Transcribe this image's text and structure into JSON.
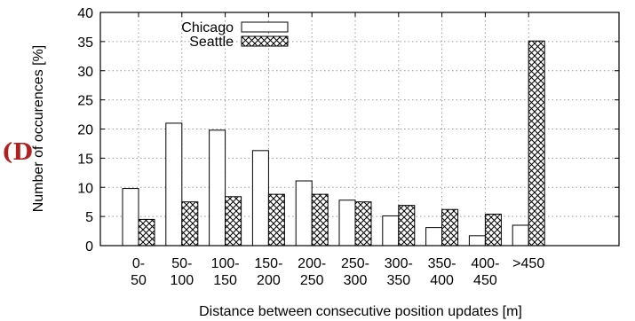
{
  "chart_data": {
    "type": "bar",
    "title": "",
    "xlabel": "Distance between consecutive position updates [m]",
    "ylabel": "Number of occurences [%]",
    "ylim": [
      0,
      40
    ],
    "yticks": [
      0,
      5,
      10,
      15,
      20,
      25,
      30,
      35,
      40
    ],
    "grid": true,
    "legend_position": "top-left",
    "categories": [
      [
        "0-",
        "50"
      ],
      [
        "50-",
        "100"
      ],
      [
        "100-",
        "150"
      ],
      [
        "150-",
        "200"
      ],
      [
        "200-",
        "250"
      ],
      [
        "250-",
        "300"
      ],
      [
        "300-",
        "350"
      ],
      [
        "350-",
        "400"
      ],
      [
        "400-",
        "450"
      ],
      [
        ">450",
        ""
      ]
    ],
    "series": [
      {
        "name": "Chicago",
        "pattern": "solid-white",
        "values": [
          9.8,
          21.0,
          19.8,
          16.3,
          11.1,
          7.8,
          5.1,
          3.1,
          1.7,
          3.5
        ]
      },
      {
        "name": "Seattle",
        "pattern": "crosshatch",
        "values": [
          4.5,
          7.5,
          8.4,
          8.8,
          8.8,
          7.5,
          6.9,
          6.2,
          5.4,
          35.1
        ]
      }
    ],
    "colors": {
      "frame": "#000000",
      "grid": "#999999",
      "bar_fill": "#ffffff",
      "decoration": "#b02020"
    }
  }
}
